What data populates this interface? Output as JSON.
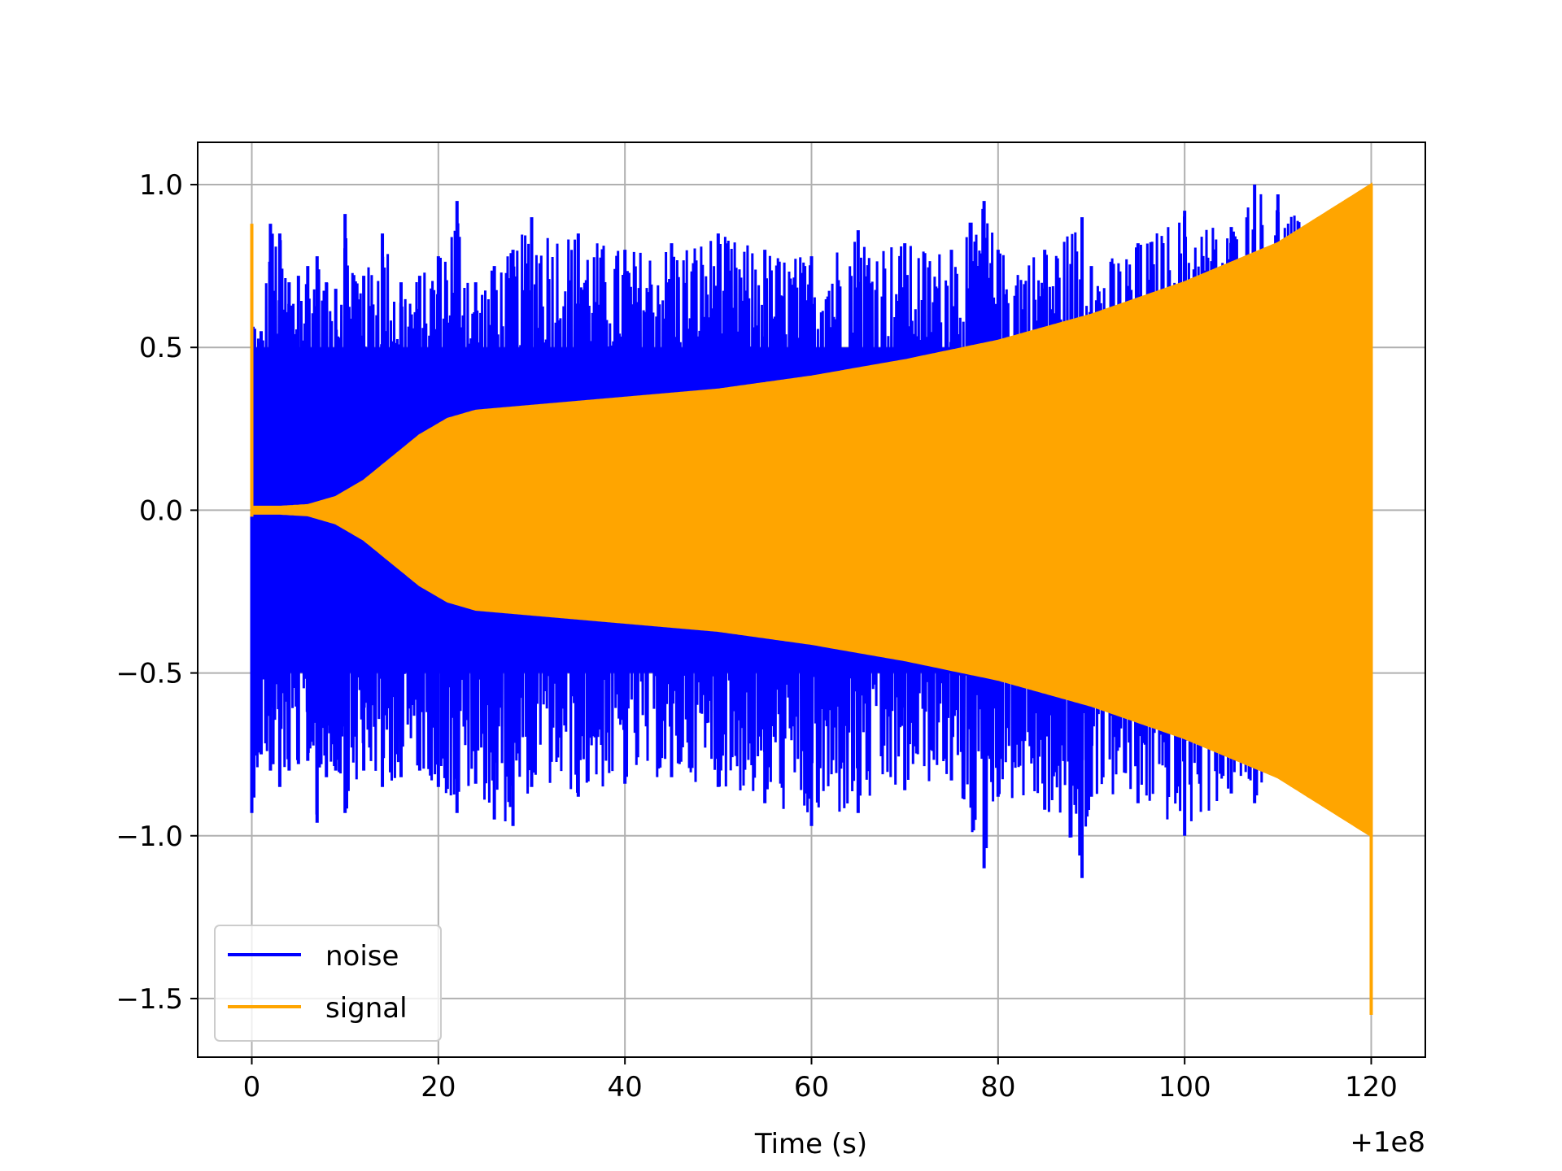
{
  "chart_data": {
    "type": "line",
    "title": "",
    "xlabel": "Time (s)",
    "ylabel": "",
    "x_offset_label": "+1e8",
    "xlim": [
      -5.8,
      125.8
    ],
    "ylim": [
      -1.68,
      1.13
    ],
    "xticks": [
      0,
      20,
      40,
      60,
      80,
      100,
      120
    ],
    "xtick_labels": [
      "0",
      "20",
      "40",
      "60",
      "80",
      "100",
      "120"
    ],
    "yticks": [
      -1.5,
      -1.0,
      -0.5,
      0.0,
      0.5,
      1.0
    ],
    "ytick_labels": [
      "−1.5",
      "−1.0",
      "−0.5",
      "0.0",
      "0.5",
      "1.0"
    ],
    "grid": true,
    "legend_location": "lower-left",
    "series": [
      {
        "name": "noise",
        "color": "#0000ff",
        "x": [
          0,
          1,
          2,
          3,
          4,
          5,
          6,
          7,
          8,
          9,
          10,
          12,
          14,
          16,
          18,
          20,
          22,
          24,
          26,
          28,
          30,
          35,
          40,
          45,
          50,
          55,
          60,
          65,
          70,
          75,
          78.5,
          80,
          85,
          89,
          90,
          95,
          100,
          105,
          107.5,
          110,
          115,
          120
        ],
        "upper_envelope": [
          0.67,
          0.55,
          0.88,
          0.85,
          0.7,
          0.72,
          0.75,
          0.78,
          0.7,
          0.68,
          0.91,
          0.72,
          0.85,
          0.7,
          0.72,
          0.78,
          0.95,
          0.7,
          0.75,
          0.8,
          0.9,
          0.85,
          0.8,
          0.82,
          0.85,
          0.8,
          0.78,
          0.86,
          0.82,
          0.8,
          0.95,
          0.8,
          0.8,
          0.9,
          0.75,
          0.82,
          0.92,
          0.87,
          1.0,
          0.97,
          0.8,
          0.45
        ],
        "lower_envelope": [
          -0.93,
          -0.75,
          -0.8,
          -0.85,
          -0.8,
          -0.78,
          -0.77,
          -0.96,
          -0.82,
          -0.8,
          -0.93,
          -0.8,
          -0.85,
          -0.82,
          -0.8,
          -0.85,
          -0.93,
          -0.84,
          -0.95,
          -0.97,
          -0.85,
          -0.88,
          -0.84,
          -0.82,
          -0.85,
          -0.9,
          -0.97,
          -0.93,
          -0.86,
          -0.83,
          -1.1,
          -0.88,
          -0.92,
          -1.13,
          -0.88,
          -0.9,
          -1.0,
          -0.87,
          -0.9,
          -0.82,
          -0.82,
          -0.95
        ]
      },
      {
        "name": "signal",
        "color": "#ffa500",
        "x": [
          0,
          1,
          3,
          6,
          9,
          12,
          15,
          18,
          21,
          24,
          30,
          40,
          50,
          60,
          70,
          80,
          90,
          100,
          110,
          120
        ],
        "amplitude_envelope": [
          0.01,
          0.01,
          0.01,
          0.015,
          0.04,
          0.09,
          0.16,
          0.23,
          0.28,
          0.305,
          0.32,
          0.345,
          0.37,
          0.41,
          0.46,
          0.52,
          0.6,
          0.7,
          0.82,
          1.0
        ],
        "start_spike": {
          "x": 0,
          "max": 0.88,
          "min": -0.02
        },
        "end_spike": {
          "x": 120,
          "max": 1.0,
          "min": -1.55
        }
      }
    ]
  }
}
